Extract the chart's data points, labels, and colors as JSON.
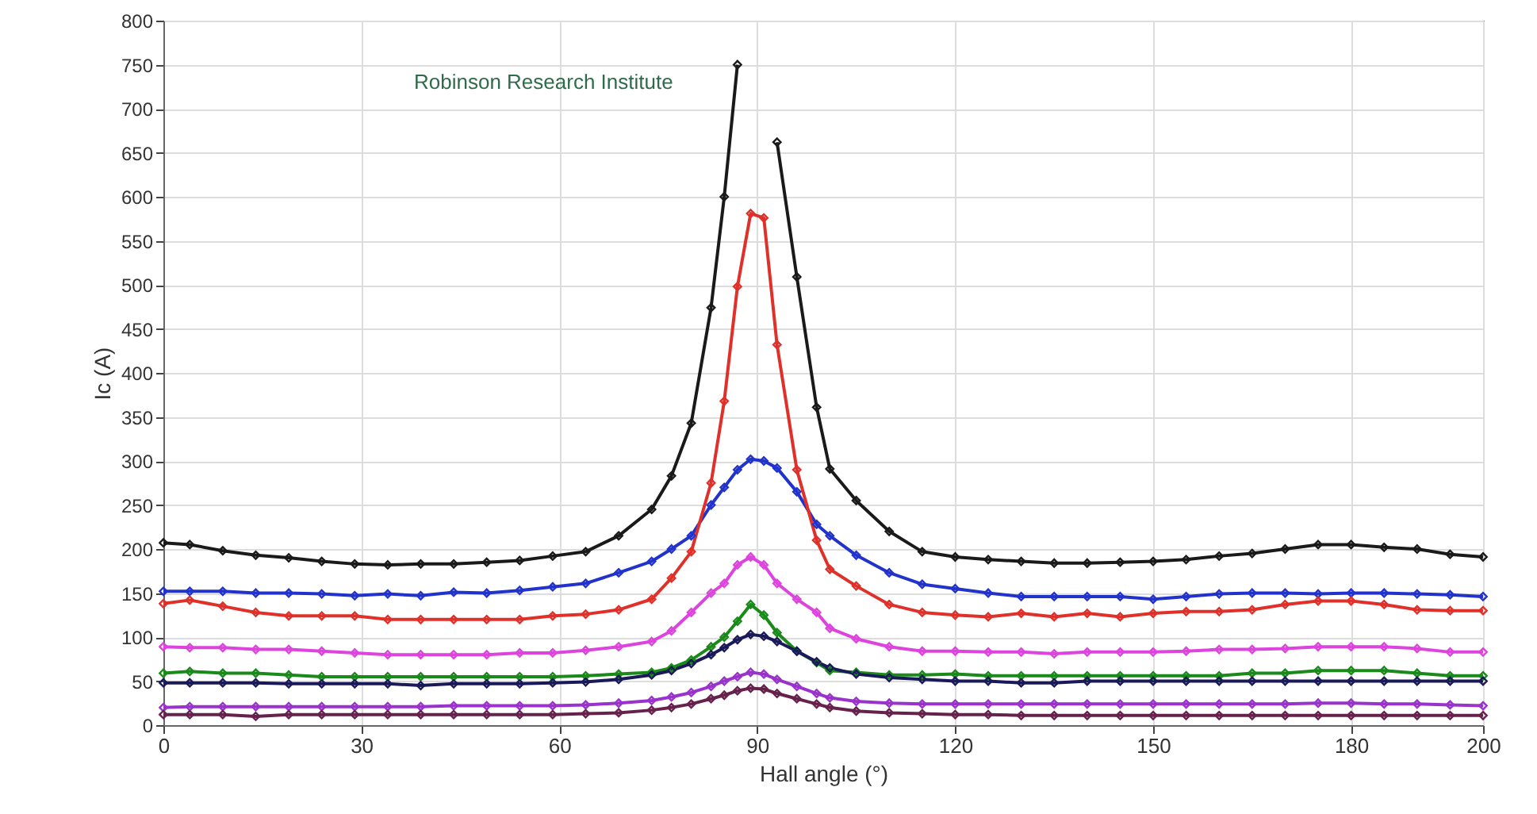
{
  "chart_data": {
    "type": "line",
    "xlabel": "Hall angle (°)",
    "ylabel": "Ic (A)",
    "annotations": [
      "Robinson Research Institute"
    ],
    "x": [
      0,
      4,
      9,
      14,
      19,
      24,
      29,
      34,
      39,
      44,
      49,
      54,
      59,
      64,
      69,
      74,
      77,
      80,
      83,
      85,
      87,
      89,
      91,
      93,
      96,
      99,
      101,
      105,
      110,
      115,
      120,
      125,
      130,
      135,
      140,
      145,
      150,
      155,
      160,
      165,
      170,
      175,
      180,
      185,
      190,
      195,
      200
    ],
    "xlim": [
      0,
      200
    ],
    "xticks": [
      0,
      30,
      60,
      90,
      120,
      150,
      180,
      200
    ],
    "ylim": [
      0,
      800
    ],
    "yticks": [
      0,
      50,
      100,
      150,
      200,
      250,
      300,
      350,
      400,
      450,
      500,
      550,
      600,
      650,
      700,
      750,
      800
    ],
    "grid": true,
    "marker": "diamond",
    "line_style": "solid",
    "series": [
      {
        "color": "#1a1a1a",
        "values": [
          207,
          205,
          198,
          193,
          190,
          186,
          183,
          182,
          183,
          183,
          185,
          187,
          192,
          197,
          215,
          245,
          283,
          343,
          474,
          600,
          750,
          null,
          null,
          662,
          509,
          361,
          291,
          255,
          220,
          197,
          191,
          188,
          186,
          184,
          184,
          185,
          186,
          188,
          192,
          195,
          200,
          205,
          205,
          202,
          200,
          194,
          191
        ]
      },
      {
        "color": "#2233cc",
        "values": [
          152,
          152,
          152,
          150,
          150,
          149,
          147,
          149,
          147,
          151,
          150,
          153,
          157,
          161,
          173,
          186,
          200,
          215,
          250,
          270,
          290,
          302,
          300,
          292,
          265,
          228,
          215,
          193,
          173,
          160,
          155,
          150,
          146,
          146,
          146,
          146,
          143,
          146,
          149,
          150,
          150,
          149,
          150,
          150,
          149,
          148,
          146
        ]
      },
      {
        "color": "#e0302a",
        "values": [
          138,
          142,
          135,
          128,
          124,
          124,
          124,
          120,
          120,
          120,
          120,
          120,
          124,
          126,
          131,
          143,
          167,
          197,
          275,
          368,
          498,
          581,
          576,
          432,
          290,
          210,
          177,
          158,
          137,
          128,
          125,
          123,
          127,
          123,
          127,
          123,
          127,
          129,
          129,
          131,
          137,
          141,
          141,
          137,
          131,
          130,
          130
        ]
      },
      {
        "color": "#dd44dd",
        "values": [
          89,
          88,
          88,
          86,
          86,
          84,
          82,
          80,
          80,
          80,
          80,
          82,
          82,
          85,
          89,
          95,
          107,
          128,
          150,
          161,
          182,
          191,
          182,
          161,
          143,
          128,
          110,
          98,
          89,
          84,
          84,
          83,
          83,
          81,
          83,
          83,
          83,
          84,
          86,
          86,
          87,
          89,
          89,
          89,
          87,
          83,
          83
        ]
      },
      {
        "color": "#1a8a1a",
        "values": [
          59,
          61,
          59,
          59,
          57,
          55,
          55,
          55,
          55,
          55,
          55,
          55,
          55,
          56,
          58,
          60,
          65,
          74,
          89,
          100,
          118,
          137,
          125,
          105,
          84,
          71,
          62,
          60,
          57,
          57,
          58,
          56,
          56,
          56,
          56,
          56,
          56,
          56,
          56,
          59,
          59,
          62,
          62,
          62,
          59,
          56,
          56
        ]
      },
      {
        "color": "#1a1a5a",
        "values": [
          48,
          48,
          48,
          48,
          47,
          47,
          47,
          47,
          45,
          47,
          47,
          47,
          48,
          49,
          52,
          57,
          62,
          70,
          80,
          88,
          97,
          103,
          101,
          95,
          84,
          72,
          65,
          58,
          54,
          52,
          50,
          50,
          48,
          48,
          50,
          50,
          50,
          50,
          50,
          50,
          50,
          50,
          50,
          50,
          50,
          50,
          50
        ]
      },
      {
        "color": "#9933cc",
        "values": [
          20,
          21,
          21,
          21,
          21,
          21,
          21,
          21,
          21,
          22,
          22,
          22,
          22,
          23,
          25,
          28,
          32,
          37,
          44,
          50,
          55,
          60,
          58,
          52,
          44,
          36,
          31,
          27,
          25,
          24,
          24,
          24,
          24,
          24,
          24,
          24,
          24,
          24,
          24,
          24,
          24,
          25,
          25,
          24,
          24,
          23,
          22
        ]
      },
      {
        "color": "#66224d",
        "values": [
          12,
          12,
          12,
          10,
          12,
          12,
          12,
          12,
          12,
          12,
          12,
          12,
          12,
          13,
          14,
          17,
          20,
          24,
          30,
          34,
          39,
          42,
          41,
          36,
          30,
          24,
          20,
          16,
          14,
          13,
          12,
          12,
          11,
          11,
          11,
          11,
          11,
          11,
          11,
          11,
          11,
          11,
          11,
          11,
          11,
          11,
          11
        ]
      }
    ]
  }
}
